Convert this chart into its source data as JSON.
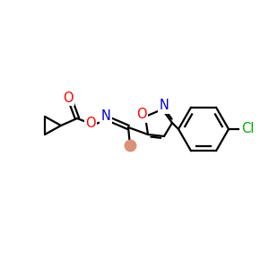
{
  "background_color": "#ffffff",
  "atom_colors": {
    "C": "#000000",
    "N": "#0000cd",
    "O": "#ff0000",
    "Cl": "#00aa00"
  },
  "figsize": [
    3.0,
    3.0
  ],
  "dpi": 100,
  "lw": 1.6,
  "fs": 10.5
}
